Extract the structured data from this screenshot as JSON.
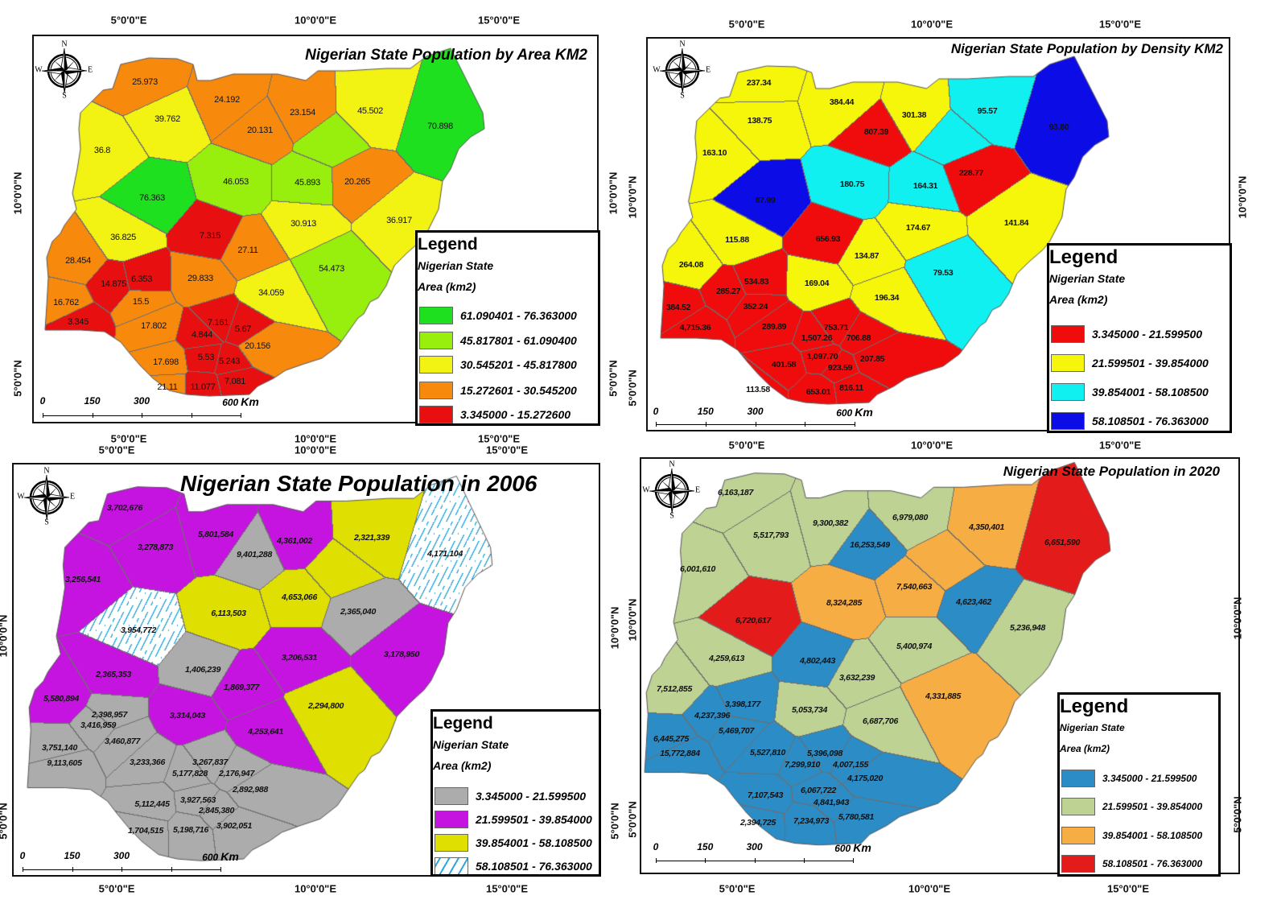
{
  "graticule": {
    "lon5": "5°0'0\"E",
    "lon10": "10°0'0\"E",
    "lon15": "15°0'0\"E",
    "lat10": "10°0'0\"N",
    "lat5": "5°0'0\"N"
  },
  "panels": [
    {
      "title": "Nigerian State Population by Area KM2",
      "compass": {
        "n": "N",
        "s": "S",
        "e": "E",
        "w": "W"
      },
      "scale": {
        "labels": [
          "0",
          "150",
          "300",
          "600"
        ],
        "unit": "Km"
      },
      "legend": {
        "heading": "Legend",
        "line1": "Nigerian State",
        "line2": "Area (km2)",
        "items": [
          {
            "label": "61.090401 - 76.363000",
            "color": "#1fe01f"
          },
          {
            "label": "45.817801 - 61.090400",
            "color": "#98ee0c"
          },
          {
            "label": "30.545201 - 45.817800",
            "color": "#f2f213"
          },
          {
            "label": "15.272601 - 30.545200",
            "color": "#f78a0d"
          },
          {
            "label": "3.345000 - 15.272600",
            "color": "#e70f0f"
          }
        ]
      },
      "labels": [
        {
          "text": "25.973",
          "cls": 3
        },
        {
          "text": "24.192",
          "cls": 3
        },
        {
          "text": "23.154",
          "cls": 3
        },
        {
          "text": "20.131",
          "cls": 3
        },
        {
          "text": "39.762",
          "cls": 2
        },
        {
          "text": "45.502",
          "cls": 2
        },
        {
          "text": "70.898",
          "cls": 0
        },
        {
          "text": "36.8",
          "cls": 2
        },
        {
          "text": "76.363",
          "cls": 0
        },
        {
          "text": "46.053",
          "cls": 1
        },
        {
          "text": "45.893",
          "cls": 1
        },
        {
          "text": "20.265",
          "cls": 3
        },
        {
          "text": "30.913",
          "cls": 2
        },
        {
          "text": "36.917",
          "cls": 2
        },
        {
          "text": "7.315",
          "cls": 4
        },
        {
          "text": "27.11",
          "cls": 3
        },
        {
          "text": "36.825",
          "cls": 2
        },
        {
          "text": "28.454",
          "cls": 3
        },
        {
          "text": "14.875",
          "cls": 4
        },
        {
          "text": "6.353",
          "cls": 4
        },
        {
          "text": "29.833",
          "cls": 3
        },
        {
          "text": "54.473",
          "cls": 1
        },
        {
          "text": "34.059",
          "cls": 2
        },
        {
          "text": "16.762",
          "cls": 3
        },
        {
          "text": "15.5",
          "cls": 3
        },
        {
          "text": "3.345",
          "cls": 4
        },
        {
          "text": "17.802",
          "cls": 3
        },
        {
          "text": "7.161",
          "cls": 4
        },
        {
          "text": "4.844",
          "cls": 4
        },
        {
          "text": "5.67",
          "cls": 4
        },
        {
          "text": "20.156",
          "cls": 3
        },
        {
          "text": "17.698",
          "cls": 3
        },
        {
          "text": "5.53",
          "cls": 4
        },
        {
          "text": "5.243",
          "cls": 4
        },
        {
          "text": "21.11",
          "cls": 3
        },
        {
          "text": "11.077",
          "cls": 4
        },
        {
          "text": "7.081",
          "cls": 4
        }
      ]
    },
    {
      "title": "Nigerian State Population by Density KM2",
      "compass": {
        "n": "N",
        "s": "S",
        "e": "E",
        "w": "W"
      },
      "scale": {
        "labels": [
          "0",
          "150",
          "300",
          "600"
        ],
        "unit": "Km"
      },
      "legend": {
        "heading": "Legend",
        "line1": "Nigerian State",
        "line2": "Area (km2)",
        "items": [
          {
            "label": "3.345000 - 21.599500",
            "color": "#f00c0c"
          },
          {
            "label": "21.599501 - 39.854000",
            "color": "#f6f60a"
          },
          {
            "label": "39.854001 - 58.108500",
            "color": "#10f0f0"
          },
          {
            "label": "58.108501 - 76.363000",
            "color": "#0c0ce6"
          }
        ]
      },
      "labels": [
        {
          "text": "237.34",
          "cls": 1
        },
        {
          "text": "384.44",
          "cls": 1
        },
        {
          "text": "138.75",
          "cls": 1
        },
        {
          "text": "301.38",
          "cls": 1
        },
        {
          "text": "807.39",
          "cls": 0
        },
        {
          "text": "95.57",
          "cls": 2
        },
        {
          "text": "93.80",
          "cls": 3
        },
        {
          "text": "163.10",
          "cls": 1
        },
        {
          "text": "87.99",
          "cls": 3
        },
        {
          "text": "180.75",
          "cls": 2
        },
        {
          "text": "164.31",
          "cls": 2
        },
        {
          "text": "228.77",
          "cls": 0
        },
        {
          "text": "141.84",
          "cls": 1
        },
        {
          "text": "174.67",
          "cls": 1
        },
        {
          "text": "656.93",
          "cls": 0
        },
        {
          "text": "115.88",
          "cls": 1
        },
        {
          "text": "134.87",
          "cls": 1
        },
        {
          "text": "264.08",
          "cls": 1
        },
        {
          "text": "79.53",
          "cls": 2
        },
        {
          "text": "534.83",
          "cls": 0
        },
        {
          "text": "285.27",
          "cls": 0
        },
        {
          "text": "169.04",
          "cls": 1
        },
        {
          "text": "196.34",
          "cls": 1
        },
        {
          "text": "384.52",
          "cls": 0
        },
        {
          "text": "352.24",
          "cls": 0
        },
        {
          "text": "4,715.36",
          "cls": 0
        },
        {
          "text": "289.89",
          "cls": 0
        },
        {
          "text": "753.71",
          "cls": 0
        },
        {
          "text": "1,507.26",
          "cls": 0
        },
        {
          "text": "706.88",
          "cls": 0
        },
        {
          "text": "1,097.70",
          "cls": 0
        },
        {
          "text": "207.85",
          "cls": 0
        },
        {
          "text": "401.58",
          "cls": 0
        },
        {
          "text": "923.59",
          "cls": 0
        },
        {
          "text": "113.58",
          "cls": 0
        },
        {
          "text": "653.01",
          "cls": 0
        },
        {
          "text": "816.11",
          "cls": 0
        }
      ]
    },
    {
      "title": "Nigerian State Population in 2006",
      "compass": {
        "n": "N",
        "s": "S",
        "e": "E",
        "w": "W"
      },
      "scale": {
        "labels": [
          "0",
          "150",
          "300",
          "600"
        ],
        "unit": "Km"
      },
      "legend": {
        "heading": "Legend",
        "line1": "Nigerian State",
        "line2": "Area (km2)",
        "items": [
          {
            "label": "3.345000 - 21.599500",
            "color": "#acacac"
          },
          {
            "label": "21.599501 - 39.854000",
            "color": "#c514e0"
          },
          {
            "label": "39.854001 - 58.108500",
            "color": "#dfdf02"
          },
          {
            "label": "58.108501 - 76.363000",
            "color": "#2aa8dc",
            "pattern": "hatched"
          }
        ]
      },
      "labels": [
        {
          "text": "3,702,676",
          "cls": 1
        },
        {
          "text": "5,801,584",
          "cls": 1
        },
        {
          "text": "4,361,002",
          "cls": 1
        },
        {
          "text": "3,278,873",
          "cls": 1
        },
        {
          "text": "9,401,288",
          "cls": 0
        },
        {
          "text": "2,321,339",
          "cls": 2
        },
        {
          "text": "4,171,104",
          "cls": 3
        },
        {
          "text": "3,256,541",
          "cls": 1
        },
        {
          "text": "4,653,066",
          "cls": 2
        },
        {
          "text": "6,113,503",
          "cls": 2
        },
        {
          "text": "2,365,040",
          "cls": 0
        },
        {
          "text": "3,954,772",
          "cls": 3
        },
        {
          "text": "3,206,531",
          "cls": 1
        },
        {
          "text": "3,178,950",
          "cls": 1
        },
        {
          "text": "1,406,239",
          "cls": 0
        },
        {
          "text": "2,365,353",
          "cls": 1
        },
        {
          "text": "1,869,377",
          "cls": 1
        },
        {
          "text": "5,580,894",
          "cls": 1
        },
        {
          "text": "2,294,800",
          "cls": 2
        },
        {
          "text": "2,398,957",
          "cls": 0
        },
        {
          "text": "3,314,043",
          "cls": 1
        },
        {
          "text": "3,416,959",
          "cls": 0
        },
        {
          "text": "4,253,641",
          "cls": 1
        },
        {
          "text": "3,460,877",
          "cls": 0
        },
        {
          "text": "3,751,140",
          "cls": 0
        },
        {
          "text": "9,113,605",
          "cls": 0
        },
        {
          "text": "3,233,366",
          "cls": 0
        },
        {
          "text": "3,267,837",
          "cls": 0
        },
        {
          "text": "5,177,828",
          "cls": 0
        },
        {
          "text": "2,176,947",
          "cls": 0
        },
        {
          "text": "2,892,988",
          "cls": 0
        },
        {
          "text": "3,927,563",
          "cls": 0
        },
        {
          "text": "5,112,445",
          "cls": 0
        },
        {
          "text": "2,845,380",
          "cls": 0
        },
        {
          "text": "1,704,515",
          "cls": 0
        },
        {
          "text": "5,198,716",
          "cls": 0
        },
        {
          "text": "3,902,051",
          "cls": 0
        }
      ]
    },
    {
      "title": "Nigerian State Population in 2020",
      "compass": {
        "n": "N",
        "s": "S",
        "e": "E",
        "w": "W"
      },
      "scale": {
        "labels": [
          "0",
          "150",
          "300",
          "600"
        ],
        "unit": "Km"
      },
      "legend": {
        "heading": "Legend",
        "line1": "Nigerian State",
        "line2": "Area (km2)",
        "items": [
          {
            "label": "3.345000 - 21.599500",
            "color": "#2b8cc6"
          },
          {
            "label": "21.599501 - 39.854000",
            "color": "#bdd293"
          },
          {
            "label": "39.854001 - 58.108500",
            "color": "#f6ad43"
          },
          {
            "label": "58.108501 - 76.363000",
            "color": "#e41b1b"
          }
        ]
      },
      "labels": [
        {
          "text": "6,163,187",
          "cls": 1
        },
        {
          "text": "9,300,382",
          "cls": 1
        },
        {
          "text": "6,979,080",
          "cls": 1
        },
        {
          "text": "4,350,401",
          "cls": 2
        },
        {
          "text": "5,517,793",
          "cls": 1
        },
        {
          "text": "16,253,549",
          "cls": 0
        },
        {
          "text": "6,651,590",
          "cls": 3
        },
        {
          "text": "6,001,610",
          "cls": 1
        },
        {
          "text": "7,540,663",
          "cls": 2
        },
        {
          "text": "8,324,285",
          "cls": 2
        },
        {
          "text": "4,623,462",
          "cls": 0
        },
        {
          "text": "6,720,617",
          "cls": 3
        },
        {
          "text": "5,236,948",
          "cls": 1
        },
        {
          "text": "5,400,974",
          "cls": 1
        },
        {
          "text": "4,259,613",
          "cls": 1
        },
        {
          "text": "4,802,443",
          "cls": 0
        },
        {
          "text": "3,632,239",
          "cls": 1
        },
        {
          "text": "7,512,855",
          "cls": 1
        },
        {
          "text": "4,331,885",
          "cls": 2
        },
        {
          "text": "3,398,177",
          "cls": 0
        },
        {
          "text": "5,053,734",
          "cls": 1
        },
        {
          "text": "4,237,396",
          "cls": 0
        },
        {
          "text": "6,687,706",
          "cls": 1
        },
        {
          "text": "5,469,707",
          "cls": 0
        },
        {
          "text": "6,445,275",
          "cls": 0
        },
        {
          "text": "15,772,884",
          "cls": 0
        },
        {
          "text": "5,527,810",
          "cls": 0
        },
        {
          "text": "5,396,098",
          "cls": 0
        },
        {
          "text": "7,299,910",
          "cls": 0
        },
        {
          "text": "4,007,155",
          "cls": 0
        },
        {
          "text": "4,175,020",
          "cls": 0
        },
        {
          "text": "7,107,543",
          "cls": 0
        },
        {
          "text": "6,067,722",
          "cls": 0
        },
        {
          "text": "4,841,943",
          "cls": 0
        },
        {
          "text": "2,394,725",
          "cls": 0
        },
        {
          "text": "7,234,973",
          "cls": 0
        },
        {
          "text": "5,780,581",
          "cls": 0
        }
      ]
    }
  ]
}
